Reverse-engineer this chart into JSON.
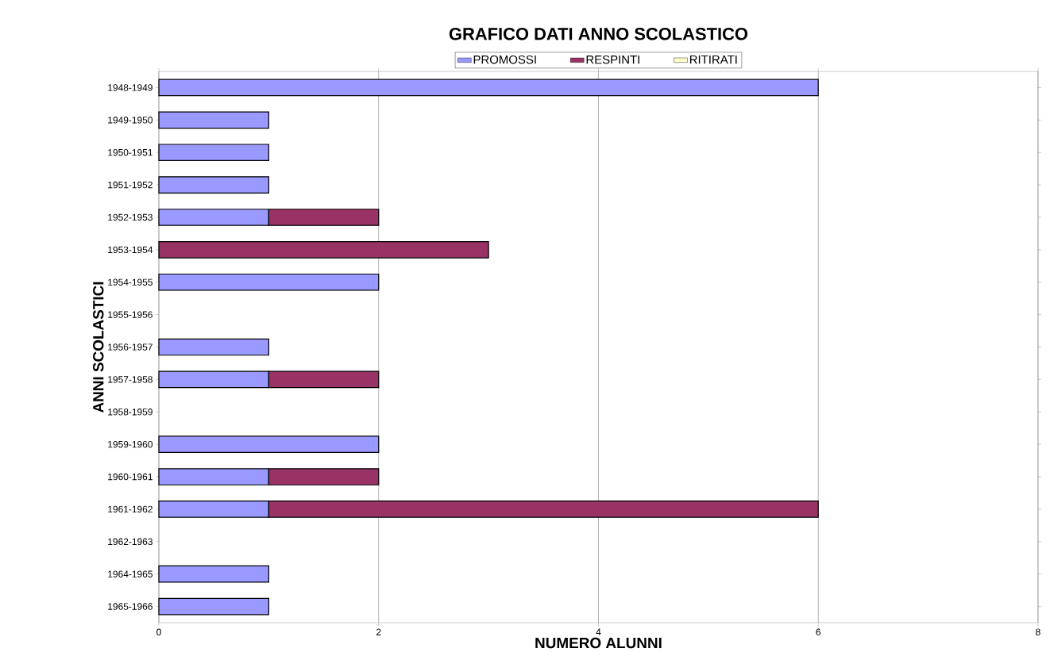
{
  "chart_data": {
    "type": "bar",
    "orientation": "horizontal",
    "stacked": true,
    "title": "GRAFICO DATI ANNO SCOLASTICO",
    "xlabel": "NUMERO ALUNNI",
    "ylabel": "ANNI SCOLASTICI",
    "categories": [
      "1948-1949",
      "1949-1950",
      "1950-1951",
      "1951-1952",
      "1952-1953",
      "1953-1954",
      "1954-1955",
      "1955-1956",
      "1956-1957",
      "1957-1958",
      "1958-1959",
      "1959-1960",
      "1960-1961",
      "1961-1962",
      "1962-1963",
      "1964-1965",
      "1965-1966"
    ],
    "series": [
      {
        "name": "PROMOSSI",
        "color": "#9999ff",
        "values": [
          6,
          1,
          1,
          1,
          1,
          null,
          2,
          null,
          1,
          1,
          null,
          2,
          1,
          1,
          null,
          1,
          1
        ]
      },
      {
        "name": "RESPINTI",
        "color": "#993366",
        "values": [
          null,
          null,
          null,
          null,
          1,
          3,
          null,
          null,
          null,
          1,
          null,
          null,
          1,
          5,
          null,
          null,
          null
        ]
      },
      {
        "name": "RITIRATI",
        "color": "#ffffcc",
        "values": [
          null,
          null,
          null,
          null,
          null,
          null,
          null,
          null,
          null,
          null,
          null,
          null,
          null,
          null,
          null,
          null,
          null
        ]
      }
    ],
    "xlim": [
      0,
      8
    ],
    "xticks": [
      0,
      2,
      4,
      6,
      8
    ],
    "grid": "x",
    "legend": "top"
  }
}
